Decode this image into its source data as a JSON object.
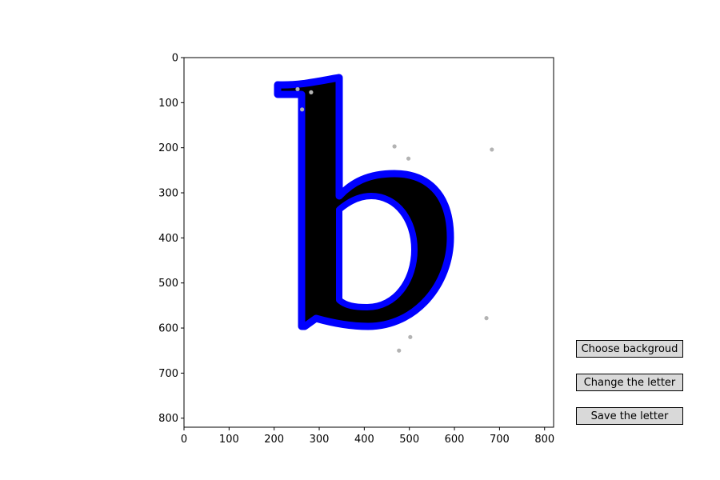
{
  "canvas": {
    "xlim": [
      0,
      820
    ],
    "ylim": [
      820,
      0
    ],
    "x_ticks": [
      "0",
      "100",
      "200",
      "300",
      "400",
      "500",
      "600",
      "700",
      "800"
    ],
    "y_ticks": [
      "0",
      "100",
      "200",
      "300",
      "400",
      "500",
      "600",
      "700",
      "800"
    ],
    "letter": "b",
    "letter_fill": "#000000",
    "outline_color": "#0000ff",
    "control_point_color": "#b3b3b3",
    "control_points": [
      [
        252,
        70
      ],
      [
        282,
        77
      ],
      [
        262,
        115
      ],
      [
        467,
        197
      ],
      [
        498,
        224
      ],
      [
        683,
        204
      ],
      [
        671,
        578
      ],
      [
        502,
        620
      ],
      [
        477,
        650
      ]
    ]
  },
  "buttons": {
    "choose_background": "Choose backgroud",
    "change_letter": "Change the letter",
    "save_letter": "Save the letter"
  }
}
